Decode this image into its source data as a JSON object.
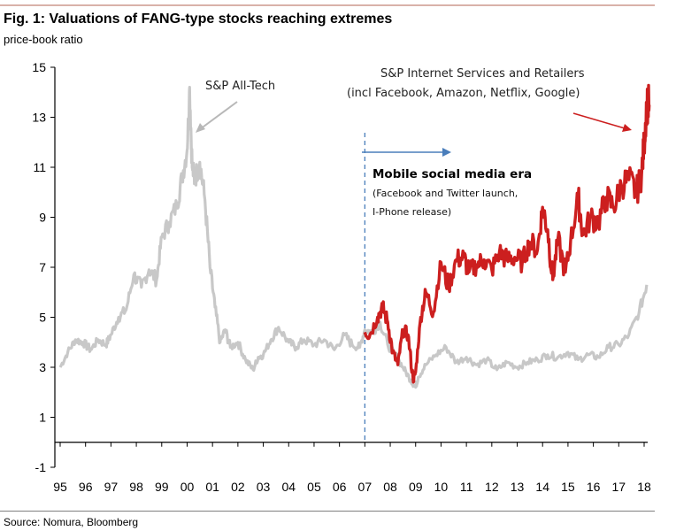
{
  "header": {
    "title": "Fig. 1: Valuations of FANG-type stocks reaching extremes",
    "subtitle": "price-book ratio"
  },
  "footer": {
    "source": "Source: Nomura, Bloomberg"
  },
  "colors": {
    "tech": "#c8c8c8",
    "internet": "#cc1f1f",
    "era_line": "#4a7ebb",
    "top_rule": "#d9b2a9"
  },
  "chart_data": {
    "type": "line",
    "title": "Fig. 1: Valuations of FANG-type stocks reaching extremes",
    "ylabel": "price-book ratio",
    "xlabel": "",
    "ylim": [
      -1,
      15
    ],
    "yticks": [
      -1,
      1,
      3,
      5,
      7,
      9,
      11,
      13,
      15
    ],
    "xlim": [
      1995,
      2018.25
    ],
    "xtick_labels": [
      "95",
      "96",
      "97",
      "98",
      "99",
      "00",
      "01",
      "02",
      "03",
      "04",
      "05",
      "06",
      "07",
      "08",
      "09",
      "10",
      "11",
      "12",
      "13",
      "14",
      "15",
      "16",
      "17",
      "18"
    ],
    "xtick_values": [
      1995,
      1996,
      1997,
      1998,
      1999,
      2000,
      2001,
      2002,
      2003,
      2004,
      2005,
      2006,
      2007,
      2008,
      2009,
      2010,
      2011,
      2012,
      2013,
      2014,
      2015,
      2016,
      2017,
      2018
    ],
    "legend": "none (inline annotations)",
    "grid": false,
    "series": [
      {
        "name": "S&P All-Tech",
        "color": "#c8c8c8",
        "x": [
          1995.0,
          1995.3,
          1995.6,
          1995.9,
          1996.2,
          1996.5,
          1996.8,
          1997.0,
          1997.3,
          1997.6,
          1997.9,
          1998.2,
          1998.5,
          1998.8,
          1999.0,
          1999.3,
          1999.6,
          1999.8,
          2000.0,
          2000.1,
          2000.2,
          2000.3,
          2000.5,
          2000.7,
          2000.9,
          2001.1,
          2001.3,
          2001.5,
          2001.7,
          2002.0,
          2002.3,
          2002.6,
          2002.8,
          2003.0,
          2003.3,
          2003.6,
          2004.0,
          2004.3,
          2004.6,
          2005.0,
          2005.4,
          2005.8,
          2006.2,
          2006.5,
          2006.8,
          2007.0,
          2007.3,
          2007.6,
          2007.9,
          2008.2,
          2008.5,
          2008.8,
          2009.0,
          2009.1,
          2009.4,
          2009.8,
          2010.2,
          2010.6,
          2011.0,
          2011.4,
          2011.8,
          2012.2,
          2012.6,
          2013.0,
          2013.4,
          2013.8,
          2014.2,
          2014.6,
          2015.0,
          2015.4,
          2015.8,
          2016.2,
          2016.6,
          2017.0,
          2017.4,
          2017.8,
          2018.1
        ],
        "values": [
          3.0,
          3.6,
          4.1,
          4.0,
          3.7,
          4.1,
          3.9,
          4.3,
          5.0,
          5.3,
          6.7,
          6.2,
          6.9,
          6.5,
          8.2,
          8.8,
          9.5,
          10.6,
          11.7,
          14.2,
          11.0,
          10.5,
          11.2,
          9.7,
          7.0,
          5.4,
          4.0,
          4.5,
          3.8,
          4.0,
          3.3,
          2.9,
          3.4,
          3.5,
          4.1,
          4.6,
          4.0,
          3.8,
          4.1,
          3.9,
          4.1,
          3.7,
          4.3,
          3.9,
          3.8,
          4.5,
          4.4,
          4.8,
          3.9,
          3.5,
          3.0,
          2.5,
          2.2,
          2.6,
          3.1,
          3.5,
          3.8,
          3.2,
          3.4,
          3.1,
          3.3,
          2.9,
          3.2,
          3.0,
          3.2,
          3.3,
          3.5,
          3.4,
          3.6,
          3.3,
          3.5,
          3.4,
          3.8,
          3.9,
          4.3,
          5.2,
          6.3
        ]
      },
      {
        "name": "S&P Internet Services and Retailers (incl Facebook, Amazon, Netflix, Google)",
        "color": "#cc1f1f",
        "x": [
          2007.0,
          2007.2,
          2007.5,
          2007.7,
          2007.9,
          2008.1,
          2008.3,
          2008.5,
          2008.7,
          2008.9,
          2009.0,
          2009.2,
          2009.4,
          2009.7,
          2010.0,
          2010.3,
          2010.6,
          2010.9,
          2011.1,
          2011.4,
          2011.7,
          2012.0,
          2012.3,
          2012.6,
          2012.9,
          2013.2,
          2013.5,
          2013.8,
          2014.0,
          2014.2,
          2014.4,
          2014.6,
          2014.9,
          2015.1,
          2015.4,
          2015.6,
          2015.9,
          2016.2,
          2016.5,
          2016.8,
          2017.1,
          2017.4,
          2017.7,
          2017.9,
          2018.0,
          2018.1,
          2018.2
        ],
        "values": [
          4.4,
          4.3,
          5.0,
          5.4,
          4.8,
          3.6,
          3.1,
          4.5,
          4.3,
          2.5,
          2.8,
          5.0,
          6.0,
          5.2,
          7.2,
          6.2,
          7.3,
          7.4,
          6.8,
          7.1,
          7.3,
          6.9,
          7.6,
          7.3,
          7.4,
          7.2,
          8.0,
          7.7,
          9.4,
          8.5,
          6.5,
          8.1,
          6.8,
          8.0,
          9.8,
          8.3,
          9.0,
          8.8,
          9.8,
          9.4,
          10.3,
          10.5,
          10.0,
          10.7,
          12.0,
          13.5,
          13.5
        ]
      }
    ],
    "annotations": [
      {
        "text": "S&P All-Tech",
        "points_to": "2000 peak of S&P All-Tech"
      },
      {
        "text": "S&P Internet Services and Retailers",
        "text2": "(incl Facebook, Amazon, Netflix, Google)",
        "points_to": "2018 peak of Internet series"
      },
      {
        "text": "Mobile social media era",
        "text2": "(Facebook and Twitter launch,",
        "text3": "I-Phone release)",
        "marker": "dashed vertical line at 2007 with rightward arrow"
      }
    ],
    "era_start": 2007
  }
}
